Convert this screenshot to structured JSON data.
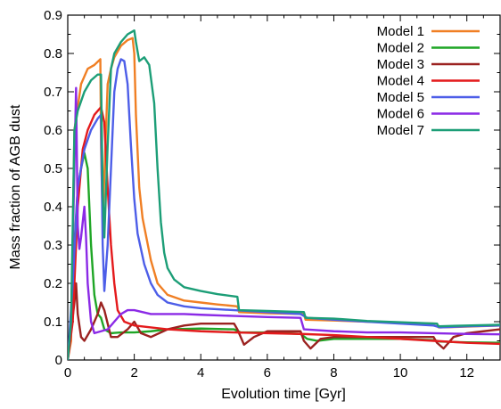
{
  "chart_data": {
    "type": "line",
    "title": "",
    "xlabel": "Evolution time [Gyr]",
    "ylabel": "Mass fraction of AGB dust",
    "xlim": [
      0,
      13
    ],
    "ylim": [
      0,
      0.9
    ],
    "x_ticks": [
      0,
      2,
      4,
      6,
      8,
      10,
      12
    ],
    "x_tick_labels": [
      "0",
      "2",
      "4",
      "6",
      "8",
      "10",
      "12"
    ],
    "y_ticks": [
      0,
      0.1,
      0.2,
      0.3,
      0.4,
      0.5,
      0.6,
      0.7,
      0.8,
      0.9
    ],
    "y_tick_labels": [
      "0",
      "0.1",
      "0.2",
      "0.3",
      "0.4",
      "0.5",
      "0.6",
      "0.7",
      "0.8",
      "0.9"
    ],
    "grid": false,
    "legend_position": "top-right",
    "series": [
      {
        "name": "Model 1",
        "color": "#f07f24",
        "points": [
          [
            0,
            0
          ],
          [
            0.1,
            0.05
          ],
          [
            0.2,
            0.6
          ],
          [
            0.3,
            0.66
          ],
          [
            0.4,
            0.72
          ],
          [
            0.6,
            0.76
          ],
          [
            0.8,
            0.77
          ],
          [
            0.98,
            0.785
          ],
          [
            1.0,
            0.56
          ],
          [
            1.05,
            0.36
          ],
          [
            1.1,
            0.48
          ],
          [
            1.2,
            0.72
          ],
          [
            1.3,
            0.76
          ],
          [
            1.4,
            0.79
          ],
          [
            1.6,
            0.82
          ],
          [
            1.8,
            0.835
          ],
          [
            1.95,
            0.84
          ],
          [
            2.0,
            0.8
          ],
          [
            2.05,
            0.64
          ],
          [
            2.15,
            0.45
          ],
          [
            2.25,
            0.37
          ],
          [
            2.5,
            0.26
          ],
          [
            2.7,
            0.2
          ],
          [
            3.0,
            0.17
          ],
          [
            3.5,
            0.155
          ],
          [
            4.0,
            0.15
          ],
          [
            4.5,
            0.145
          ],
          [
            5.1,
            0.14
          ],
          [
            5.15,
            0.125
          ],
          [
            6.0,
            0.122
          ],
          [
            7.1,
            0.12
          ],
          [
            7.15,
            0.105
          ],
          [
            8,
            0.103
          ],
          [
            9,
            0.1
          ],
          [
            11.1,
            0.095
          ],
          [
            11.15,
            0.085
          ],
          [
            12,
            0.087
          ],
          [
            13,
            0.09
          ]
        ]
      },
      {
        "name": "Model 2",
        "color": "#1fa626",
        "points": [
          [
            0,
            0
          ],
          [
            0.1,
            0.1
          ],
          [
            0.2,
            0.3
          ],
          [
            0.3,
            0.45
          ],
          [
            0.4,
            0.5
          ],
          [
            0.5,
            0.54
          ],
          [
            0.6,
            0.5
          ],
          [
            0.7,
            0.3
          ],
          [
            0.8,
            0.17
          ],
          [
            0.9,
            0.12
          ],
          [
            1.0,
            0.11
          ],
          [
            1.1,
            0.08
          ],
          [
            1.3,
            0.07
          ],
          [
            1.6,
            0.072
          ],
          [
            2,
            0.072
          ],
          [
            2.5,
            0.075
          ],
          [
            3,
            0.08
          ],
          [
            4,
            0.082
          ],
          [
            5,
            0.08
          ],
          [
            5.2,
            0.072
          ],
          [
            6,
            0.072
          ],
          [
            7,
            0.068
          ],
          [
            7.2,
            0.055
          ],
          [
            7.5,
            0.05
          ],
          [
            8,
            0.055
          ],
          [
            9,
            0.055
          ],
          [
            10,
            0.055
          ],
          [
            11,
            0.052
          ],
          [
            11.2,
            0.048
          ],
          [
            12,
            0.046
          ],
          [
            13,
            0.045
          ]
        ]
      },
      {
        "name": "Model 3",
        "color": "#9b2220",
        "points": [
          [
            0,
            0
          ],
          [
            0.2,
            0.15
          ],
          [
            0.25,
            0.2
          ],
          [
            0.3,
            0.12
          ],
          [
            0.4,
            0.06
          ],
          [
            0.5,
            0.05
          ],
          [
            0.7,
            0.08
          ],
          [
            0.9,
            0.12
          ],
          [
            1.0,
            0.15
          ],
          [
            1.1,
            0.13
          ],
          [
            1.3,
            0.06
          ],
          [
            1.5,
            0.06
          ],
          [
            1.8,
            0.08
          ],
          [
            2.0,
            0.1
          ],
          [
            2.2,
            0.07
          ],
          [
            2.5,
            0.06
          ],
          [
            3,
            0.08
          ],
          [
            3.5,
            0.09
          ],
          [
            4,
            0.095
          ],
          [
            5,
            0.095
          ],
          [
            5.1,
            0.08
          ],
          [
            5.3,
            0.04
          ],
          [
            5.6,
            0.06
          ],
          [
            6,
            0.075
          ],
          [
            7,
            0.075
          ],
          [
            7.1,
            0.05
          ],
          [
            7.3,
            0.03
          ],
          [
            7.6,
            0.055
          ],
          [
            8,
            0.06
          ],
          [
            9,
            0.06
          ],
          [
            10,
            0.06
          ],
          [
            11,
            0.06
          ],
          [
            11.1,
            0.045
          ],
          [
            11.3,
            0.03
          ],
          [
            11.6,
            0.06
          ],
          [
            12,
            0.07
          ],
          [
            12.5,
            0.075
          ],
          [
            13,
            0.08
          ]
        ]
      },
      {
        "name": "Model 4",
        "color": "#e41a1c",
        "points": [
          [
            0,
            0
          ],
          [
            0.15,
            0.1
          ],
          [
            0.3,
            0.4
          ],
          [
            0.45,
            0.55
          ],
          [
            0.6,
            0.6
          ],
          [
            0.8,
            0.64
          ],
          [
            1.0,
            0.66
          ],
          [
            1.1,
            0.62
          ],
          [
            1.2,
            0.45
          ],
          [
            1.3,
            0.3
          ],
          [
            1.4,
            0.2
          ],
          [
            1.5,
            0.13
          ],
          [
            1.7,
            0.1
          ],
          [
            2,
            0.09
          ],
          [
            3,
            0.08
          ],
          [
            4,
            0.075
          ],
          [
            5,
            0.072
          ],
          [
            6,
            0.07
          ],
          [
            7,
            0.068
          ],
          [
            8,
            0.065
          ],
          [
            9,
            0.06
          ],
          [
            10,
            0.055
          ],
          [
            11,
            0.05
          ],
          [
            12,
            0.045
          ],
          [
            13,
            0.042
          ]
        ]
      },
      {
        "name": "Model 5",
        "color": "#4d5ee8",
        "points": [
          [
            0,
            0
          ],
          [
            0.15,
            0.2
          ],
          [
            0.3,
            0.45
          ],
          [
            0.5,
            0.55
          ],
          [
            0.7,
            0.6
          ],
          [
            0.9,
            0.63
          ],
          [
            1.0,
            0.64
          ],
          [
            1.05,
            0.3
          ],
          [
            1.1,
            0.18
          ],
          [
            1.2,
            0.3
          ],
          [
            1.3,
            0.5
          ],
          [
            1.4,
            0.7
          ],
          [
            1.5,
            0.76
          ],
          [
            1.6,
            0.785
          ],
          [
            1.7,
            0.78
          ],
          [
            1.8,
            0.72
          ],
          [
            1.9,
            0.56
          ],
          [
            2.0,
            0.42
          ],
          [
            2.1,
            0.33
          ],
          [
            2.3,
            0.25
          ],
          [
            2.5,
            0.2
          ],
          [
            2.7,
            0.17
          ],
          [
            3.0,
            0.15
          ],
          [
            3.5,
            0.14
          ],
          [
            4,
            0.135
          ],
          [
            5,
            0.13
          ],
          [
            6,
            0.125
          ],
          [
            7,
            0.12
          ],
          [
            7.2,
            0.11
          ],
          [
            8,
            0.105
          ],
          [
            9,
            0.1
          ],
          [
            10,
            0.095
          ],
          [
            11,
            0.09
          ],
          [
            11.2,
            0.085
          ],
          [
            12,
            0.088
          ],
          [
            13,
            0.09
          ]
        ]
      },
      {
        "name": "Model 6",
        "color": "#8b2ae6",
        "points": [
          [
            0,
            0
          ],
          [
            0.1,
            0.1
          ],
          [
            0.2,
            0.5
          ],
          [
            0.25,
            0.71
          ],
          [
            0.3,
            0.35
          ],
          [
            0.35,
            0.29
          ],
          [
            0.4,
            0.32
          ],
          [
            0.5,
            0.4
          ],
          [
            0.55,
            0.32
          ],
          [
            0.6,
            0.2
          ],
          [
            0.7,
            0.1
          ],
          [
            0.8,
            0.07
          ],
          [
            1.0,
            0.075
          ],
          [
            1.2,
            0.08
          ],
          [
            1.4,
            0.1
          ],
          [
            1.6,
            0.12
          ],
          [
            1.8,
            0.13
          ],
          [
            2,
            0.13
          ],
          [
            2.5,
            0.12
          ],
          [
            3,
            0.12
          ],
          [
            3.5,
            0.12
          ],
          [
            4,
            0.118
          ],
          [
            5,
            0.115
          ],
          [
            6,
            0.112
          ],
          [
            7,
            0.11
          ],
          [
            7.1,
            0.08
          ],
          [
            8,
            0.075
          ],
          [
            9,
            0.072
          ],
          [
            10,
            0.072
          ],
          [
            11,
            0.07
          ],
          [
            12,
            0.068
          ],
          [
            13,
            0.067
          ]
        ]
      },
      {
        "name": "Model 7",
        "color": "#1c9e77",
        "points": [
          [
            0,
            0
          ],
          [
            0.1,
            0.1
          ],
          [
            0.2,
            0.6
          ],
          [
            0.3,
            0.65
          ],
          [
            0.5,
            0.7
          ],
          [
            0.7,
            0.73
          ],
          [
            0.9,
            0.745
          ],
          [
            1.0,
            0.745
          ],
          [
            1.05,
            0.44
          ],
          [
            1.1,
            0.32
          ],
          [
            1.2,
            0.56
          ],
          [
            1.3,
            0.76
          ],
          [
            1.4,
            0.8
          ],
          [
            1.6,
            0.83
          ],
          [
            1.8,
            0.85
          ],
          [
            2.0,
            0.86
          ],
          [
            2.05,
            0.83
          ],
          [
            2.15,
            0.78
          ],
          [
            2.3,
            0.79
          ],
          [
            2.45,
            0.77
          ],
          [
            2.6,
            0.67
          ],
          [
            2.7,
            0.5
          ],
          [
            2.8,
            0.36
          ],
          [
            2.9,
            0.28
          ],
          [
            3.0,
            0.24
          ],
          [
            3.2,
            0.21
          ],
          [
            3.5,
            0.19
          ],
          [
            4,
            0.18
          ],
          [
            4.5,
            0.172
          ],
          [
            5.1,
            0.165
          ],
          [
            5.15,
            0.13
          ],
          [
            6,
            0.128
          ],
          [
            7.1,
            0.125
          ],
          [
            7.15,
            0.11
          ],
          [
            8,
            0.108
          ],
          [
            9,
            0.102
          ],
          [
            11.1,
            0.095
          ],
          [
            11.15,
            0.088
          ],
          [
            12,
            0.09
          ],
          [
            13,
            0.092
          ]
        ]
      }
    ]
  }
}
